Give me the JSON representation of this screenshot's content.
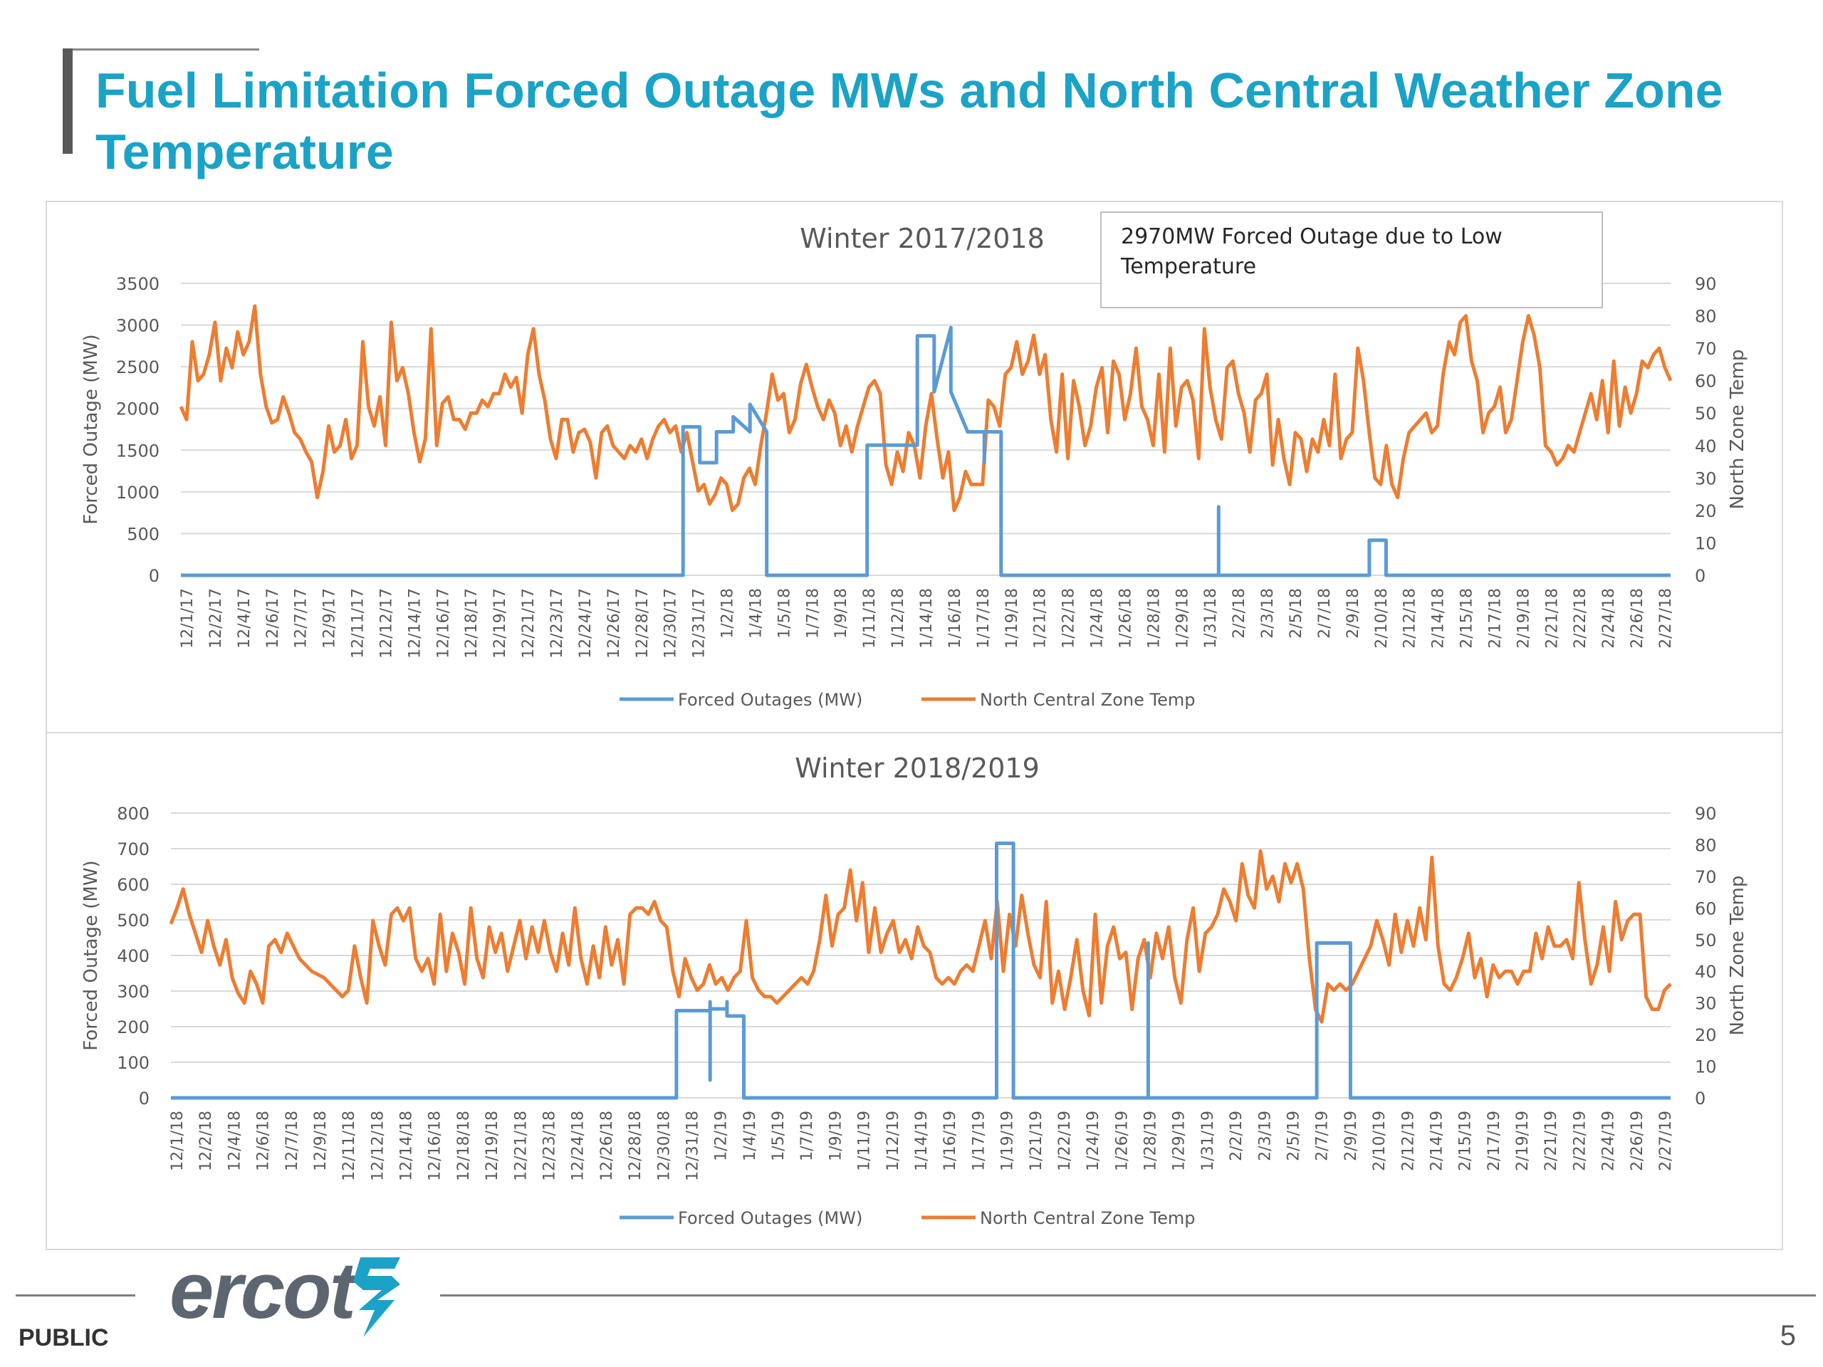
{
  "slide": {
    "title": "Fuel Limitation Forced Outage MWs and North Central Weather Zone Temperature",
    "footer_left": "PUBLIC",
    "page_number": "5",
    "logo_text": "ercot"
  },
  "colors": {
    "title": "#1aa3c6",
    "outage": "#5b9bd5",
    "temp": "#ed7d31",
    "grid": "#d9d9d9",
    "text": "#595959"
  },
  "chart_data": [
    {
      "type": "line",
      "title": "Winter 2017/2018",
      "ylabel": "Forced Outage (MW)",
      "y2label": "North Zone Temp",
      "ylim": [
        0,
        3500
      ],
      "yticks": [
        0,
        500,
        1000,
        1500,
        2000,
        2500,
        3000,
        3500
      ],
      "y2lim": [
        0,
        90
      ],
      "y2ticks": [
        0,
        10,
        20,
        30,
        40,
        50,
        60,
        70,
        80,
        90
      ],
      "grid": true,
      "legend_position": "bottom",
      "x_range": [
        "12/1/17",
        "2/28/18"
      ],
      "x_start": "2017-12-01",
      "x_end": "2018-02-28",
      "tick_labels": [
        "12/1/17",
        "12/2/17",
        "12/4/17",
        "12/6/17",
        "12/7/17",
        "12/9/17",
        "12/11/17",
        "12/12/17",
        "12/14/17",
        "12/16/17",
        "12/18/17",
        "12/19/17",
        "12/21/17",
        "12/23/17",
        "12/24/17",
        "12/26/17",
        "12/28/17",
        "12/30/17",
        "12/31/17",
        "1/2/18",
        "1/4/18",
        "1/5/18",
        "1/7/18",
        "1/9/18",
        "1/11/18",
        "1/12/18",
        "1/14/18",
        "1/16/18",
        "1/17/18",
        "1/19/18",
        "1/21/18",
        "1/22/18",
        "1/24/18",
        "1/26/18",
        "1/28/18",
        "1/29/18",
        "1/31/18",
        "2/2/18",
        "2/3/18",
        "2/5/18",
        "2/7/18",
        "2/9/18",
        "2/10/18",
        "2/12/18",
        "2/14/18",
        "2/15/18",
        "2/17/18",
        "2/19/18",
        "2/21/18",
        "2/22/18",
        "2/24/18",
        "2/26/18",
        "2/27/18"
      ],
      "annotation": "2970MW Forced Outage due to Low Temperature",
      "series": [
        {
          "name": "Forced Outages (MW)",
          "axis": "left",
          "x": [
            "12/1/17",
            "12/31/17",
            "12/31/17",
            "1/1/18",
            "1/1/18",
            "1/2/18",
            "1/2/18",
            "1/3/18",
            "1/3/18",
            "1/4/18",
            "1/4/18",
            "1/5/18",
            "1/5/18",
            "1/11/18",
            "1/11/18",
            "1/14/18",
            "1/14/18",
            "1/15/18",
            "1/15/18",
            "1/16/18",
            "1/16/18",
            "1/17/18",
            "1/17/18",
            "1/18/18",
            "1/18/18",
            "1/18/18",
            "1/18/18",
            "1/19/18",
            "1/19/18",
            "2/1/18",
            "2/1/18",
            "2/1/18",
            "2/1/18",
            "2/10/18",
            "2/10/18",
            "2/11/18",
            "2/11/18",
            "2/28/18"
          ],
          "values": [
            0,
            0,
            1780,
            1780,
            1350,
            1350,
            1720,
            1720,
            1900,
            1720,
            2050,
            1720,
            0,
            0,
            1560,
            1560,
            2870,
            2870,
            2200,
            2970,
            2200,
            1720,
            1720,
            1720,
            1350,
            1720,
            1720,
            1720,
            0,
            0,
            820,
            820,
            0,
            0,
            420,
            420,
            0,
            0
          ]
        },
        {
          "name": "North Central Zone Temp",
          "axis": "right",
          "x_start": "12/1/17",
          "x_end": "2/28/18",
          "values": [
            52,
            48,
            72,
            60,
            62,
            68,
            78,
            60,
            70,
            64,
            75,
            68,
            72,
            83,
            62,
            52,
            47,
            48,
            55,
            50,
            44,
            42,
            38,
            35,
            24,
            32,
            46,
            38,
            40,
            48,
            36,
            40,
            72,
            52,
            46,
            55,
            40,
            78,
            60,
            64,
            56,
            44,
            35,
            42,
            76,
            40,
            53,
            55,
            48,
            48,
            45,
            50,
            50,
            54,
            52,
            56,
            56,
            62,
            58,
            61,
            50,
            68,
            76,
            62,
            54,
            42,
            36,
            48,
            48,
            38,
            44,
            45,
            41,
            30,
            44,
            46,
            40,
            38,
            36,
            40,
            38,
            42,
            36,
            42,
            46,
            48,
            44,
            46,
            38,
            44,
            35,
            26,
            28,
            22,
            25,
            30,
            28,
            20,
            22,
            30,
            33,
            28,
            40,
            50,
            62,
            54,
            56,
            44,
            48,
            59,
            65,
            58,
            52,
            48,
            54,
            50,
            40,
            46,
            38,
            46,
            52,
            58,
            60,
            56,
            34,
            28,
            38,
            32,
            44,
            40,
            30,
            46,
            56,
            42,
            30,
            38,
            20,
            24,
            32,
            28,
            28,
            28,
            54,
            52,
            46,
            62,
            64,
            72,
            62,
            66,
            74,
            62,
            68,
            48,
            38,
            62,
            36,
            60,
            52,
            40,
            46,
            58,
            64,
            44,
            66,
            62,
            48,
            56,
            70,
            52,
            48,
            40,
            62,
            38,
            70,
            46,
            58,
            60,
            54,
            36,
            76,
            58,
            48,
            42,
            64,
            66,
            56,
            50,
            38,
            54,
            56,
            62,
            34,
            48,
            36,
            28,
            44,
            42,
            32,
            42,
            38,
            48,
            40,
            62,
            36,
            42,
            44,
            70,
            60,
            44,
            30,
            28,
            40,
            28,
            24,
            36,
            44,
            46,
            48,
            50,
            44,
            46,
            62,
            72,
            68,
            78,
            80,
            66,
            60,
            44,
            50,
            52,
            58,
            44,
            48,
            60,
            72,
            80,
            74,
            64,
            40,
            38,
            34,
            36,
            40,
            38,
            44,
            50,
            56,
            48,
            60,
            44,
            66,
            46,
            58,
            50,
            56,
            66,
            64,
            68,
            70,
            64,
            60
          ]
        }
      ]
    },
    {
      "type": "line",
      "title": "Winter 2018/2019",
      "ylabel": "Forced Outage (MW)",
      "y2label": "North Zone Temp",
      "ylim": [
        0,
        800
      ],
      "yticks": [
        0,
        100,
        200,
        300,
        400,
        500,
        600,
        700,
        800
      ],
      "y2lim": [
        0,
        90
      ],
      "y2ticks": [
        0,
        10,
        20,
        30,
        40,
        50,
        60,
        70,
        80,
        90
      ],
      "grid": true,
      "legend_position": "bottom",
      "x_range": [
        "12/1/18",
        "2/28/19"
      ],
      "x_start": "2018-12-01",
      "x_end": "2019-02-28",
      "tick_labels": [
        "12/1/18",
        "12/2/18",
        "12/4/18",
        "12/6/18",
        "12/7/18",
        "12/9/18",
        "12/11/18",
        "12/12/18",
        "12/14/18",
        "12/16/18",
        "12/18/18",
        "12/19/18",
        "12/21/18",
        "12/23/18",
        "12/24/18",
        "12/26/18",
        "12/28/18",
        "12/30/18",
        "12/31/18",
        "1/2/19",
        "1/4/19",
        "1/5/19",
        "1/7/19",
        "1/9/19",
        "1/11/19",
        "1/12/19",
        "1/14/19",
        "1/16/19",
        "1/17/19",
        "1/19/19",
        "1/21/19",
        "1/22/19",
        "1/24/19",
        "1/26/19",
        "1/28/19",
        "1/29/19",
        "1/31/19",
        "2/2/19",
        "2/3/19",
        "2/5/19",
        "2/7/19",
        "2/9/19",
        "2/10/19",
        "2/12/19",
        "2/14/19",
        "2/15/19",
        "2/17/19",
        "2/19/19",
        "2/21/19",
        "2/22/19",
        "2/24/19",
        "2/26/19",
        "2/27/19"
      ],
      "series": [
        {
          "name": "Forced Outages (MW)",
          "axis": "left",
          "x": [
            "12/1/18",
            "12/31/18",
            "12/31/18",
            "1/2/19",
            "1/2/19",
            "1/2/19",
            "1/2/19",
            "1/2/19",
            "1/3/19",
            "1/3/19",
            "1/3/19",
            "1/3/19",
            "1/4/19",
            "1/4/19",
            "1/4/19",
            "1/4/19",
            "1/19/19",
            "1/19/19",
            "1/20/19",
            "1/20/19",
            "1/28/19",
            "1/28/19",
            "1/28/19",
            "1/28/19",
            "2/7/19",
            "2/7/19",
            "2/9/19",
            "2/9/19",
            "2/28/19"
          ],
          "values": [
            0,
            0,
            245,
            245,
            220,
            270,
            50,
            250,
            250,
            270,
            270,
            230,
            230,
            220,
            220,
            0,
            0,
            715,
            715,
            0,
            0,
            435,
            435,
            0,
            0,
            435,
            435,
            0,
            0
          ]
        },
        {
          "name": "North Central Zone Temp",
          "axis": "right",
          "x_start": "12/1/18",
          "x_end": "2/28/19",
          "values": [
            55,
            60,
            66,
            58,
            52,
            46,
            56,
            48,
            42,
            50,
            38,
            33,
            30,
            40,
            36,
            30,
            48,
            50,
            46,
            52,
            48,
            44,
            42,
            40,
            39,
            38,
            36,
            34,
            32,
            34,
            48,
            38,
            30,
            56,
            48,
            42,
            58,
            60,
            56,
            60,
            44,
            40,
            44,
            36,
            58,
            40,
            52,
            46,
            36,
            60,
            44,
            38,
            54,
            46,
            52,
            40,
            48,
            56,
            44,
            54,
            46,
            56,
            46,
            40,
            52,
            42,
            60,
            44,
            36,
            48,
            38,
            54,
            42,
            50,
            36,
            58,
            60,
            60,
            58,
            62,
            56,
            54,
            40,
            32,
            44,
            38,
            34,
            36,
            42,
            36,
            38,
            34,
            38,
            40,
            56,
            38,
            34,
            32,
            32,
            30,
            32,
            34,
            36,
            38,
            36,
            40,
            50,
            64,
            48,
            58,
            60,
            72,
            56,
            68,
            46,
            60,
            46,
            52,
            56,
            46,
            50,
            44,
            54,
            48,
            46,
            38,
            36,
            38,
            36,
            40,
            42,
            40,
            48,
            56,
            44,
            62,
            40,
            58,
            48,
            64,
            52,
            42,
            38,
            62,
            30,
            40,
            28,
            38,
            50,
            34,
            26,
            58,
            30,
            48,
            54,
            44,
            46,
            28,
            44,
            50,
            38,
            52,
            44,
            54,
            38,
            30,
            50,
            60,
            40,
            52,
            54,
            58,
            66,
            62,
            56,
            74,
            64,
            60,
            78,
            66,
            70,
            62,
            74,
            68,
            74,
            66,
            44,
            28,
            24,
            36,
            34,
            36,
            34,
            36,
            40,
            44,
            48,
            56,
            50,
            42,
            58,
            46,
            56,
            48,
            60,
            50,
            76,
            48,
            36,
            34,
            38,
            44,
            52,
            38,
            44,
            32,
            42,
            38,
            40,
            40,
            36,
            40,
            40,
            52,
            44,
            54,
            48,
            48,
            50,
            44,
            68,
            50,
            36,
            42,
            54,
            40,
            62,
            50,
            56,
            58,
            58,
            32,
            28,
            28,
            34,
            36
          ]
        }
      ]
    }
  ]
}
